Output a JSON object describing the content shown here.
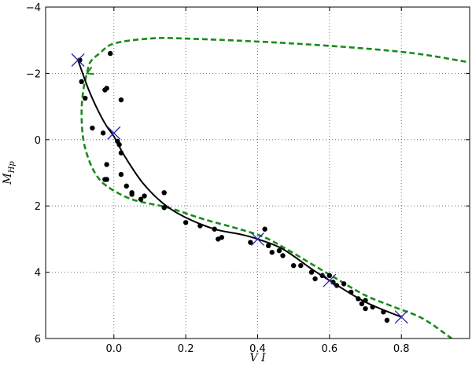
{
  "chart_data": {
    "type": "scatter",
    "title": "",
    "xlabel": "V I",
    "ylabel": "M_{H_p}",
    "ylabel_main": "M",
    "ylabel_sub": "Hp",
    "xlim": [
      -0.19,
      0.99
    ],
    "ylim": [
      6,
      -4
    ],
    "y_inverted": true,
    "grid": true,
    "x_ticks": [
      0.0,
      0.2,
      0.4,
      0.6,
      0.8
    ],
    "x_tick_labels": [
      "0.0",
      "0.2",
      "0.4",
      "0.6",
      "0.8"
    ],
    "y_ticks": [
      -4,
      -2,
      0,
      2,
      4,
      6
    ],
    "y_tick_labels": [
      "−4",
      "−2",
      "0",
      "2",
      "4",
      "6"
    ],
    "series": [
      {
        "kind": "points",
        "color": "#000000",
        "points": [
          [
            -0.01,
            -2.6
          ],
          [
            -0.095,
            -2.4
          ],
          [
            -0.09,
            -1.75
          ],
          [
            -0.08,
            -1.25
          ],
          [
            -0.02,
            -1.55
          ],
          [
            -0.025,
            -1.5
          ],
          [
            0.02,
            -1.2
          ],
          [
            -0.06,
            -0.35
          ],
          [
            -0.03,
            -0.2
          ],
          [
            0.01,
            0.05
          ],
          [
            0.015,
            0.15
          ],
          [
            0.02,
            0.4
          ],
          [
            -0.02,
            0.75
          ],
          [
            -0.025,
            1.2
          ],
          [
            -0.02,
            1.2
          ],
          [
            0.02,
            1.05
          ],
          [
            0.035,
            1.4
          ],
          [
            0.05,
            1.65
          ],
          [
            0.05,
            1.6
          ],
          [
            0.075,
            1.8
          ],
          [
            0.085,
            1.7
          ],
          [
            0.14,
            1.6
          ],
          [
            0.14,
            2.05
          ],
          [
            0.2,
            2.5
          ],
          [
            0.24,
            2.6
          ],
          [
            0.28,
            2.7
          ],
          [
            0.29,
            3.0
          ],
          [
            0.3,
            2.95
          ],
          [
            0.38,
            3.1
          ],
          [
            0.42,
            2.7
          ],
          [
            0.43,
            3.2
          ],
          [
            0.44,
            3.4
          ],
          [
            0.46,
            3.35
          ],
          [
            0.47,
            3.5
          ],
          [
            0.5,
            3.8
          ],
          [
            0.52,
            3.8
          ],
          [
            0.55,
            4.0
          ],
          [
            0.56,
            4.2
          ],
          [
            0.58,
            4.1
          ],
          [
            0.6,
            4.1
          ],
          [
            0.61,
            4.3
          ],
          [
            0.62,
            4.4
          ],
          [
            0.64,
            4.35
          ],
          [
            0.66,
            4.6
          ],
          [
            0.68,
            4.8
          ],
          [
            0.69,
            4.95
          ],
          [
            0.7,
            4.85
          ],
          [
            0.7,
            5.1
          ],
          [
            0.72,
            5.05
          ],
          [
            0.75,
            5.2
          ],
          [
            0.76,
            5.45
          ]
        ]
      },
      {
        "kind": "line",
        "style": "solid",
        "color": "#000000",
        "points": [
          [
            -0.1,
            -2.4
          ],
          [
            -0.07,
            -1.5
          ],
          [
            -0.045,
            -0.9
          ],
          [
            -0.02,
            -0.4
          ],
          [
            0.0,
            -0.1
          ],
          [
            0.03,
            0.5
          ],
          [
            0.08,
            1.3
          ],
          [
            0.14,
            1.95
          ],
          [
            0.2,
            2.35
          ],
          [
            0.28,
            2.7
          ],
          [
            0.35,
            2.85
          ],
          [
            0.4,
            3.0
          ],
          [
            0.47,
            3.3
          ],
          [
            0.55,
            3.9
          ],
          [
            0.6,
            4.25
          ],
          [
            0.7,
            4.9
          ],
          [
            0.8,
            5.35
          ]
        ]
      },
      {
        "kind": "line",
        "style": "dashed",
        "color": "#1a8a1a",
        "points": [
          [
            0.98,
            -2.35
          ],
          [
            0.8,
            -2.65
          ],
          [
            0.5,
            -2.9
          ],
          [
            0.2,
            -3.05
          ],
          [
            0.1,
            -3.05
          ],
          [
            0.0,
            -2.9
          ],
          [
            -0.04,
            -2.6
          ],
          [
            -0.065,
            -2.35
          ],
          [
            -0.075,
            -2.0
          ],
          [
            -0.085,
            -1.5
          ],
          [
            -0.09,
            -0.8
          ],
          [
            -0.085,
            0.0
          ],
          [
            -0.07,
            0.6
          ],
          [
            -0.05,
            1.05
          ],
          [
            -0.02,
            1.4
          ],
          [
            0.05,
            1.8
          ],
          [
            0.15,
            2.05
          ],
          [
            0.25,
            2.4
          ],
          [
            0.35,
            2.7
          ],
          [
            0.42,
            2.95
          ],
          [
            0.48,
            3.3
          ],
          [
            0.55,
            3.75
          ],
          [
            0.62,
            4.2
          ],
          [
            0.7,
            4.7
          ],
          [
            0.78,
            5.05
          ],
          [
            0.86,
            5.4
          ],
          [
            0.94,
            6.0
          ]
        ]
      },
      {
        "kind": "markers",
        "marker": "x",
        "color": "#2323b0",
        "points": [
          [
            -0.1,
            -2.4
          ],
          [
            0.0,
            -0.2
          ],
          [
            0.4,
            3.0
          ],
          [
            0.6,
            4.25
          ],
          [
            0.8,
            5.35
          ]
        ]
      }
    ]
  }
}
